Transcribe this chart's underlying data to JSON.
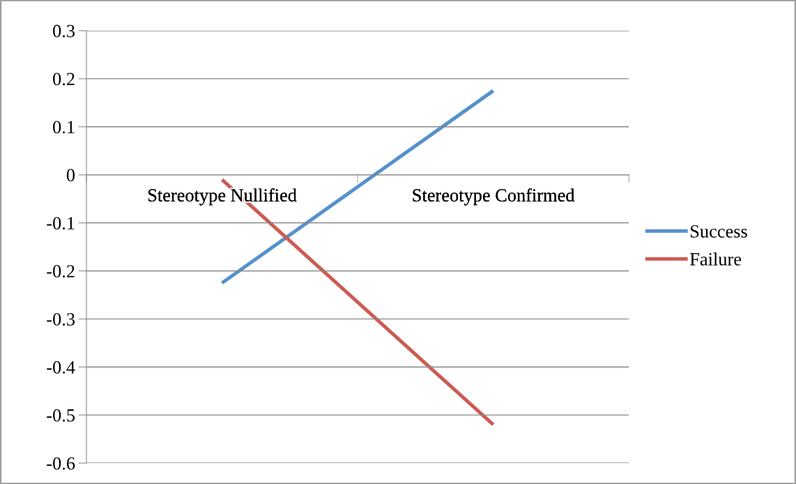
{
  "chart_data": {
    "type": "line",
    "categories": [
      "Stereotype Nullified",
      "Stereotype Confirmed"
    ],
    "series": [
      {
        "name": "Success",
        "color": "#5591cc",
        "values": [
          -0.225,
          0.175
        ]
      },
      {
        "name": "Failure",
        "color": "#cc5b52",
        "values": [
          -0.01,
          -0.52
        ]
      }
    ],
    "ylim": [
      -0.6,
      0.3
    ],
    "yticks": [
      -0.6,
      -0.5,
      -0.4,
      -0.3,
      -0.2,
      -0.1,
      0,
      0.1,
      0.2,
      0.3
    ],
    "grid": "y",
    "legend": "right",
    "marker": "none",
    "line_style": "solid"
  }
}
